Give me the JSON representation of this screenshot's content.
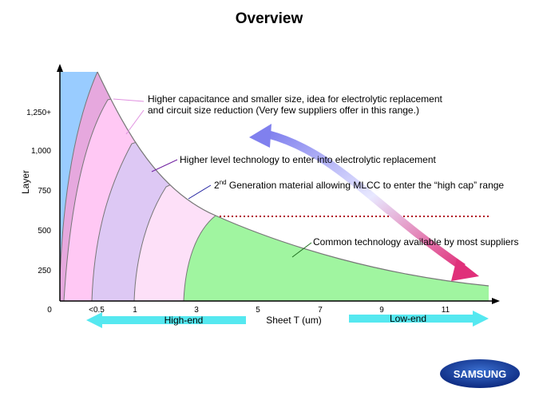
{
  "title": "Overview",
  "y_axis": {
    "label": "Layer",
    "ticks": [
      "250",
      "500",
      "750",
      "1,000",
      "1,250+"
    ]
  },
  "x_axis": {
    "label": "Sheet T (um)",
    "ticks": [
      "0",
      "<0.5",
      "1",
      "3",
      "5",
      "7",
      "9",
      "11"
    ]
  },
  "annotations": {
    "high_cap": [
      "Higher capacitance and smaller size, idea for electrolytic replacement",
      "and circuit size reduction (Very few suppliers offer in this range.)"
    ],
    "higher_level": "Higher level technology to enter into electrolytic replacement",
    "second_gen": {
      "number": "2",
      "suffix": "nd",
      "text": " Generation material allowing MLCC to enter the “high cap” range"
    },
    "common": "Common technology available by most suppliers"
  },
  "arrows": {
    "high_end": "High-end",
    "low_end": "Low-end"
  },
  "logo": "SAMSUNG"
}
